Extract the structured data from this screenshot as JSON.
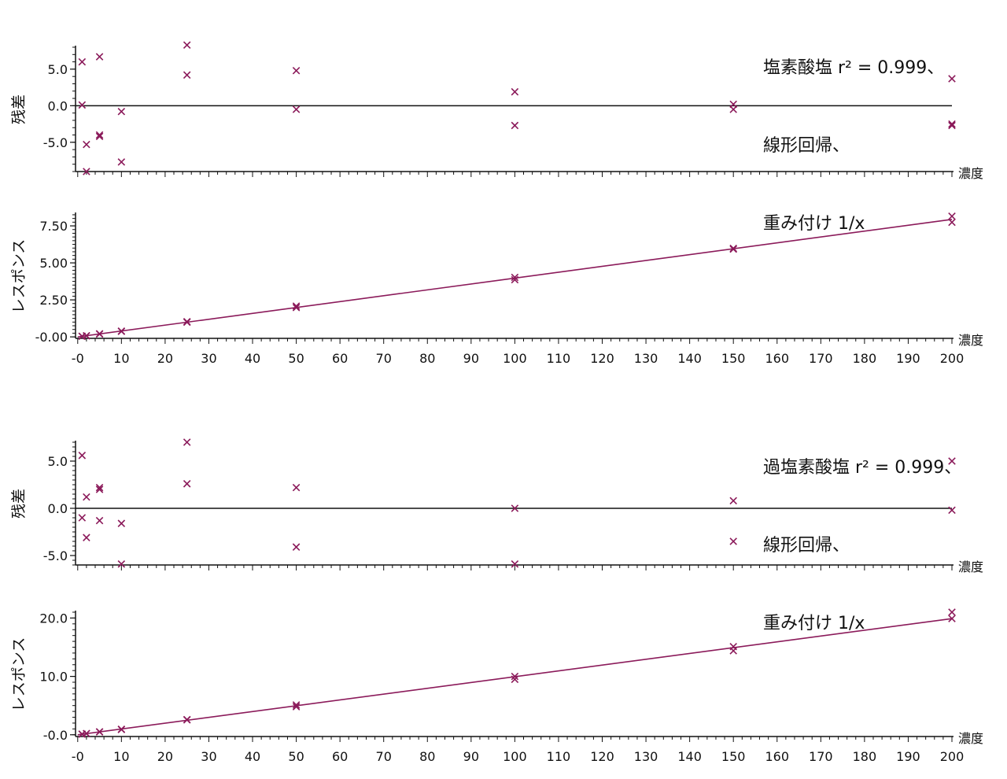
{
  "colors": {
    "marker": "#8b1a5a",
    "fit_line": "#8b1a5a",
    "axis": "#111111",
    "zero_line": "#111111"
  },
  "chart_data": [
    {
      "type": "scatter",
      "panel": "residual",
      "title": "",
      "annotation": [
        "塩素酸塩 r² = 0.999、",
        "線形回帰、",
        "重み付け 1/x"
      ],
      "xlabel": "濃度",
      "ylabel": "残差",
      "xlim": [
        -0.5,
        200
      ],
      "ylim": [
        -9,
        8
      ],
      "yticks": [
        {
          "v": 5,
          "label": "5.0"
        },
        {
          "v": 0,
          "label": "0.0"
        },
        {
          "v": -5,
          "label": "-5.0"
        }
      ],
      "reference_line": 0,
      "points": [
        [
          1,
          6
        ],
        [
          1,
          0.1
        ],
        [
          2,
          -5.3
        ],
        [
          2,
          -9
        ],
        [
          5,
          6.7
        ],
        [
          5,
          -4
        ],
        [
          5,
          -4.2
        ],
        [
          10,
          -0.8
        ],
        [
          10,
          -7.7
        ],
        [
          25,
          8.3
        ],
        [
          25,
          4.2
        ],
        [
          50,
          4.8
        ],
        [
          50,
          -0.5
        ],
        [
          100,
          1.9
        ],
        [
          100,
          -2.7
        ],
        [
          150,
          0.2
        ],
        [
          150,
          -0.5
        ],
        [
          200,
          3.7
        ],
        [
          200,
          -2.5
        ],
        [
          200,
          -2.7
        ]
      ]
    },
    {
      "type": "scatter",
      "panel": "calibration",
      "title": "",
      "xlabel": "濃度",
      "ylabel": "レスポンス",
      "xlim": [
        -0.5,
        200
      ],
      "ylim": [
        -0.1,
        8.3
      ],
      "yticks": [
        {
          "v": 7.5,
          "label": "7.50"
        },
        {
          "v": 5,
          "label": "5.00"
        },
        {
          "v": 2.5,
          "label": "2.50"
        },
        {
          "v": 0,
          "label": "-0.00"
        }
      ],
      "xticks": [
        {
          "v": 0,
          "label": "-0"
        },
        {
          "v": 10,
          "label": "10"
        },
        {
          "v": 20,
          "label": "20"
        },
        {
          "v": 30,
          "label": "30"
        },
        {
          "v": 40,
          "label": "40"
        },
        {
          "v": 50,
          "label": "50"
        },
        {
          "v": 60,
          "label": "60"
        },
        {
          "v": 70,
          "label": "70"
        },
        {
          "v": 80,
          "label": "80"
        },
        {
          "v": 90,
          "label": "90"
        },
        {
          "v": 100,
          "label": "100"
        },
        {
          "v": 110,
          "label": "110"
        },
        {
          "v": 120,
          "label": "120"
        },
        {
          "v": 130,
          "label": "130"
        },
        {
          "v": 140,
          "label": "140"
        },
        {
          "v": 150,
          "label": "150"
        },
        {
          "v": 160,
          "label": "160"
        },
        {
          "v": 170,
          "label": "170"
        },
        {
          "v": 180,
          "label": "180"
        },
        {
          "v": 190,
          "label": "190"
        },
        {
          "v": 200,
          "label": "200"
        }
      ],
      "fit_line": [
        [
          0,
          0
        ],
        [
          200,
          7.94
        ]
      ],
      "points": [
        [
          1,
          0.04
        ],
        [
          1,
          0.04
        ],
        [
          2,
          0.08
        ],
        [
          2,
          0.07
        ],
        [
          5,
          0.21
        ],
        [
          5,
          0.19
        ],
        [
          10,
          0.39
        ],
        [
          10,
          0.37
        ],
        [
          25,
          1.03
        ],
        [
          25,
          0.99
        ],
        [
          50,
          2.08
        ],
        [
          50,
          1.98
        ],
        [
          100,
          4.02
        ],
        [
          100,
          3.86
        ],
        [
          150,
          5.98
        ],
        [
          150,
          5.93
        ],
        [
          200,
          8.15
        ],
        [
          200,
          7.74
        ]
      ]
    },
    {
      "type": "scatter",
      "panel": "residual",
      "title": "",
      "annotation": [
        "過塩素酸塩 r² = 0.999、",
        "線形回帰、",
        "重み付け 1/x"
      ],
      "xlabel": "濃度",
      "ylabel": "残差",
      "xlim": [
        -0.5,
        200
      ],
      "ylim": [
        -6,
        7
      ],
      "yticks": [
        {
          "v": 5,
          "label": "5.0"
        },
        {
          "v": 0,
          "label": "0.0"
        },
        {
          "v": -5,
          "label": "-5.0"
        }
      ],
      "reference_line": 0,
      "points": [
        [
          1,
          5.6
        ],
        [
          1,
          -1
        ],
        [
          2,
          1.2
        ],
        [
          2,
          -3.1
        ],
        [
          5,
          2.2
        ],
        [
          5,
          2
        ],
        [
          5,
          -1.3
        ],
        [
          10,
          -1.6
        ],
        [
          10,
          -5.9
        ],
        [
          25,
          7
        ],
        [
          25,
          2.6
        ],
        [
          50,
          2.2
        ],
        [
          50,
          -4.1
        ],
        [
          100,
          0
        ],
        [
          100,
          -5.9
        ],
        [
          150,
          0.8
        ],
        [
          150,
          -3.5
        ],
        [
          200,
          5
        ],
        [
          200,
          -0.2
        ]
      ]
    },
    {
      "type": "scatter",
      "panel": "calibration",
      "title": "",
      "xlabel": "濃度",
      "ylabel": "レスポンス",
      "xlim": [
        -0.5,
        200
      ],
      "ylim": [
        -0.3,
        21
      ],
      "yticks": [
        {
          "v": 20,
          "label": "20.0"
        },
        {
          "v": 10,
          "label": "10.0"
        },
        {
          "v": 0,
          "label": "-0.0"
        }
      ],
      "xticks": [
        {
          "v": 0,
          "label": "-0"
        },
        {
          "v": 10,
          "label": "10"
        },
        {
          "v": 20,
          "label": "20"
        },
        {
          "v": 30,
          "label": "30"
        },
        {
          "v": 40,
          "label": "40"
        },
        {
          "v": 50,
          "label": "50"
        },
        {
          "v": 60,
          "label": "60"
        },
        {
          "v": 70,
          "label": "70"
        },
        {
          "v": 80,
          "label": "80"
        },
        {
          "v": 90,
          "label": "90"
        },
        {
          "v": 100,
          "label": "100"
        },
        {
          "v": 110,
          "label": "110"
        },
        {
          "v": 120,
          "label": "120"
        },
        {
          "v": 130,
          "label": "130"
        },
        {
          "v": 140,
          "label": "140"
        },
        {
          "v": 150,
          "label": "150"
        },
        {
          "v": 160,
          "label": "160"
        },
        {
          "v": 170,
          "label": "170"
        },
        {
          "v": 180,
          "label": "180"
        },
        {
          "v": 190,
          "label": "190"
        },
        {
          "v": 200,
          "label": "200"
        }
      ],
      "fit_line": [
        [
          0,
          0
        ],
        [
          200,
          19.9
        ]
      ],
      "points": [
        [
          1,
          0.1
        ],
        [
          1,
          0.11
        ],
        [
          2,
          0.21
        ],
        [
          2,
          0.2
        ],
        [
          5,
          0.51
        ],
        [
          5,
          0.49
        ],
        [
          10,
          0.95
        ],
        [
          10,
          0.9
        ],
        [
          25,
          2.6
        ],
        [
          25,
          2.55
        ],
        [
          50,
          5.1
        ],
        [
          50,
          4.8
        ],
        [
          100,
          10
        ],
        [
          100,
          9.5
        ],
        [
          150,
          15.1
        ],
        [
          150,
          14.4
        ],
        [
          200,
          21
        ],
        [
          200,
          19.9
        ]
      ]
    }
  ]
}
